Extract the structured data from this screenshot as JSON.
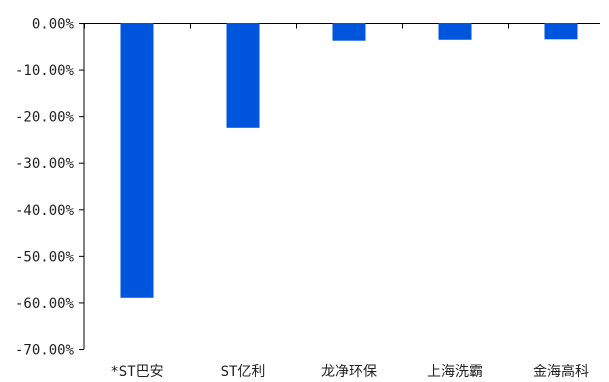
{
  "chart_data": {
    "type": "bar",
    "categories": [
      "*ST巴安",
      "ST亿利",
      "龙净环保",
      "上海洗霸",
      "金海高科"
    ],
    "values": [
      -59.0,
      -22.5,
      -3.8,
      -3.6,
      -3.5
    ],
    "ylim": [
      -70,
      0
    ],
    "yticks": [
      0,
      -10,
      -20,
      -30,
      -40,
      -50,
      -60,
      -70
    ],
    "ytick_labels": [
      "0.00%",
      "-10.00%",
      "-20.00%",
      "-30.00%",
      "-40.00%",
      "-50.00%",
      "-60.00%",
      "-70.00%"
    ],
    "bar_color": "#0055DD",
    "axis_color": "#000000",
    "grid": false,
    "legend": "none"
  }
}
